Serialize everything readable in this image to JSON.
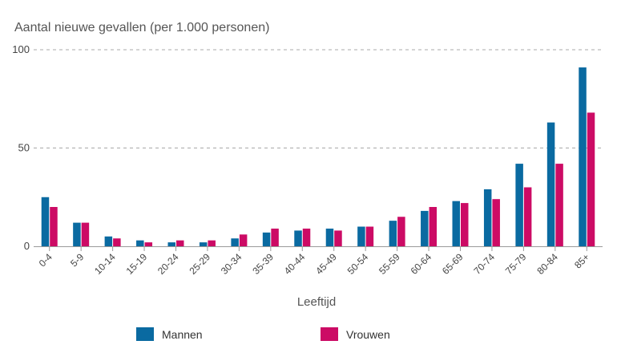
{
  "chart_data": {
    "type": "bar",
    "ylabel": "Aantal nieuwe gevallen (per 1.000 personen)",
    "xlabel": "Leeftijd",
    "ylim": [
      0,
      100
    ],
    "yticks": [
      0,
      50,
      100
    ],
    "categories": [
      "0-4",
      "5-9",
      "10-14",
      "15-19",
      "20-24",
      "25-29",
      "30-34",
      "35-39",
      "40-44",
      "45-49",
      "50-54",
      "55-59",
      "60-64",
      "65-69",
      "70-74",
      "75-79",
      "80-84",
      "85+"
    ],
    "series": [
      {
        "name": "Mannen",
        "color": "#0a6aa1",
        "values": [
          25,
          12,
          5,
          3,
          2,
          2,
          4,
          7,
          8,
          9,
          10,
          13,
          18,
          23,
          29,
          42,
          63,
          91
        ]
      },
      {
        "name": "Vrouwen",
        "color": "#cc0b65",
        "values": [
          20,
          12,
          4,
          2,
          3,
          3,
          6,
          9,
          9,
          8,
          10,
          15,
          20,
          22,
          24,
          30,
          42,
          68
        ]
      }
    ]
  }
}
